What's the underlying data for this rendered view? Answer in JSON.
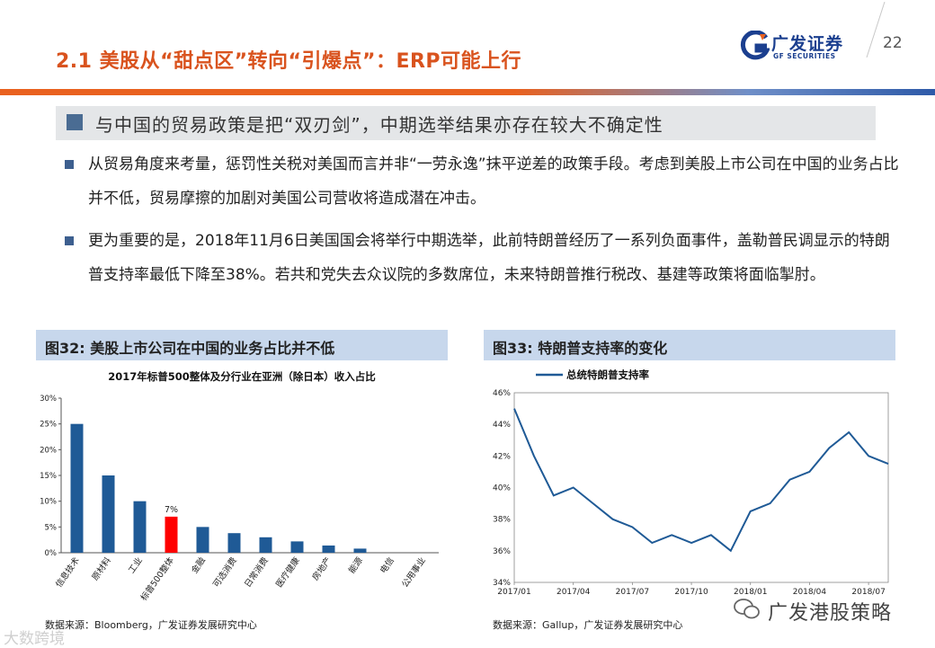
{
  "header": {
    "title": "2.1 美股从“甜点区”转向“引爆点”：ERP可能上行",
    "logo_cn": "广发证券",
    "logo_en": "GF SECURITIES",
    "page_number": "22",
    "colors": {
      "accent_orange": "#e9611f",
      "brand_blue": "#1b3f8f",
      "title_orange": "#d9531e"
    }
  },
  "headline": {
    "text": "与中国的贸易政策是把“双刃剑”，中期选举结果亦存在较大不确定性"
  },
  "bullets": [
    {
      "text": "从贸易角度来考量，惩罚性关税对美国而言并非“一劳永逸”抹平逆差的政策手段。考虑到美股上市公司在中国的业务占比并不低，贸易摩擦的加剧对美国公司营收将造成潜在冲击。"
    },
    {
      "text": "更为重要的是，2018年11月6日美国国会将举行中期选举，此前特朗普经历了一系列负面事件，盖勒普民调显示的特朗普支持率最低下降至38%。若共和党失去众议院的多数席位，未来特朗普推行税改、基建等政策将面临掣肘。"
    }
  ],
  "figures": [
    {
      "label": "图32:  美股上市公司在中国的业务占比并不低",
      "source": "数据来源：Bloomberg，广发证券发展研究中心"
    },
    {
      "label": "图33:  特朗普支持率的变化",
      "source": "数据来源：Gallup，广发证券发展研究中心"
    }
  ],
  "chart_data": [
    {
      "type": "bar",
      "title": "2017年标普500整体及分行业在亚洲（除日本）收入占比",
      "categories": [
        "信息技术",
        "原材料",
        "工业",
        "标普500整体",
        "金融",
        "可选消费",
        "日常消费",
        "医疗健康",
        "房地产",
        "能源",
        "电信",
        "公用事业"
      ],
      "values": [
        25,
        15,
        10,
        7,
        5,
        3.8,
        3,
        2.2,
        1.4,
        0.8,
        0,
        0
      ],
      "highlight_category": "标普500整体",
      "data_labels": {
        "标普500整体": "7%"
      },
      "yticks": [
        "0%",
        "5%",
        "10%",
        "15%",
        "20%",
        "25%",
        "30%"
      ],
      "ylim": [
        0,
        30
      ],
      "colors": {
        "bar": "#1f5a96",
        "highlight": "#ff0000"
      },
      "grid": false
    },
    {
      "type": "line",
      "legend": [
        "总统特朗普支持率"
      ],
      "xticks": [
        "2017/01",
        "2017/04",
        "2017/07",
        "2017/10",
        "2018/01",
        "2018/04",
        "2018/07"
      ],
      "yticks": [
        "34%",
        "36%",
        "38%",
        "40%",
        "42%",
        "44%",
        "46%"
      ],
      "ylim": [
        34,
        46
      ],
      "legend_position": "top-left",
      "colors": {
        "line": "#1f5a96"
      },
      "series": [
        {
          "name": "总统特朗普支持率",
          "x": [
            "2017/01",
            "2017/02",
            "2017/03",
            "2017/04",
            "2017/05",
            "2017/06",
            "2017/07",
            "2017/08",
            "2017/09",
            "2017/10",
            "2017/11",
            "2017/12",
            "2018/01",
            "2018/02",
            "2018/03",
            "2018/04",
            "2018/05",
            "2018/06",
            "2018/07",
            "2018/08"
          ],
          "values": [
            45,
            42,
            39.5,
            40,
            39,
            38,
            37.5,
            36.5,
            37,
            36.5,
            37,
            36,
            38.5,
            39,
            40.5,
            41,
            42.5,
            43.5,
            42,
            41.5
          ]
        }
      ]
    }
  ],
  "watermarks": {
    "left": "大数跨境",
    "right": "广发港股策略"
  }
}
